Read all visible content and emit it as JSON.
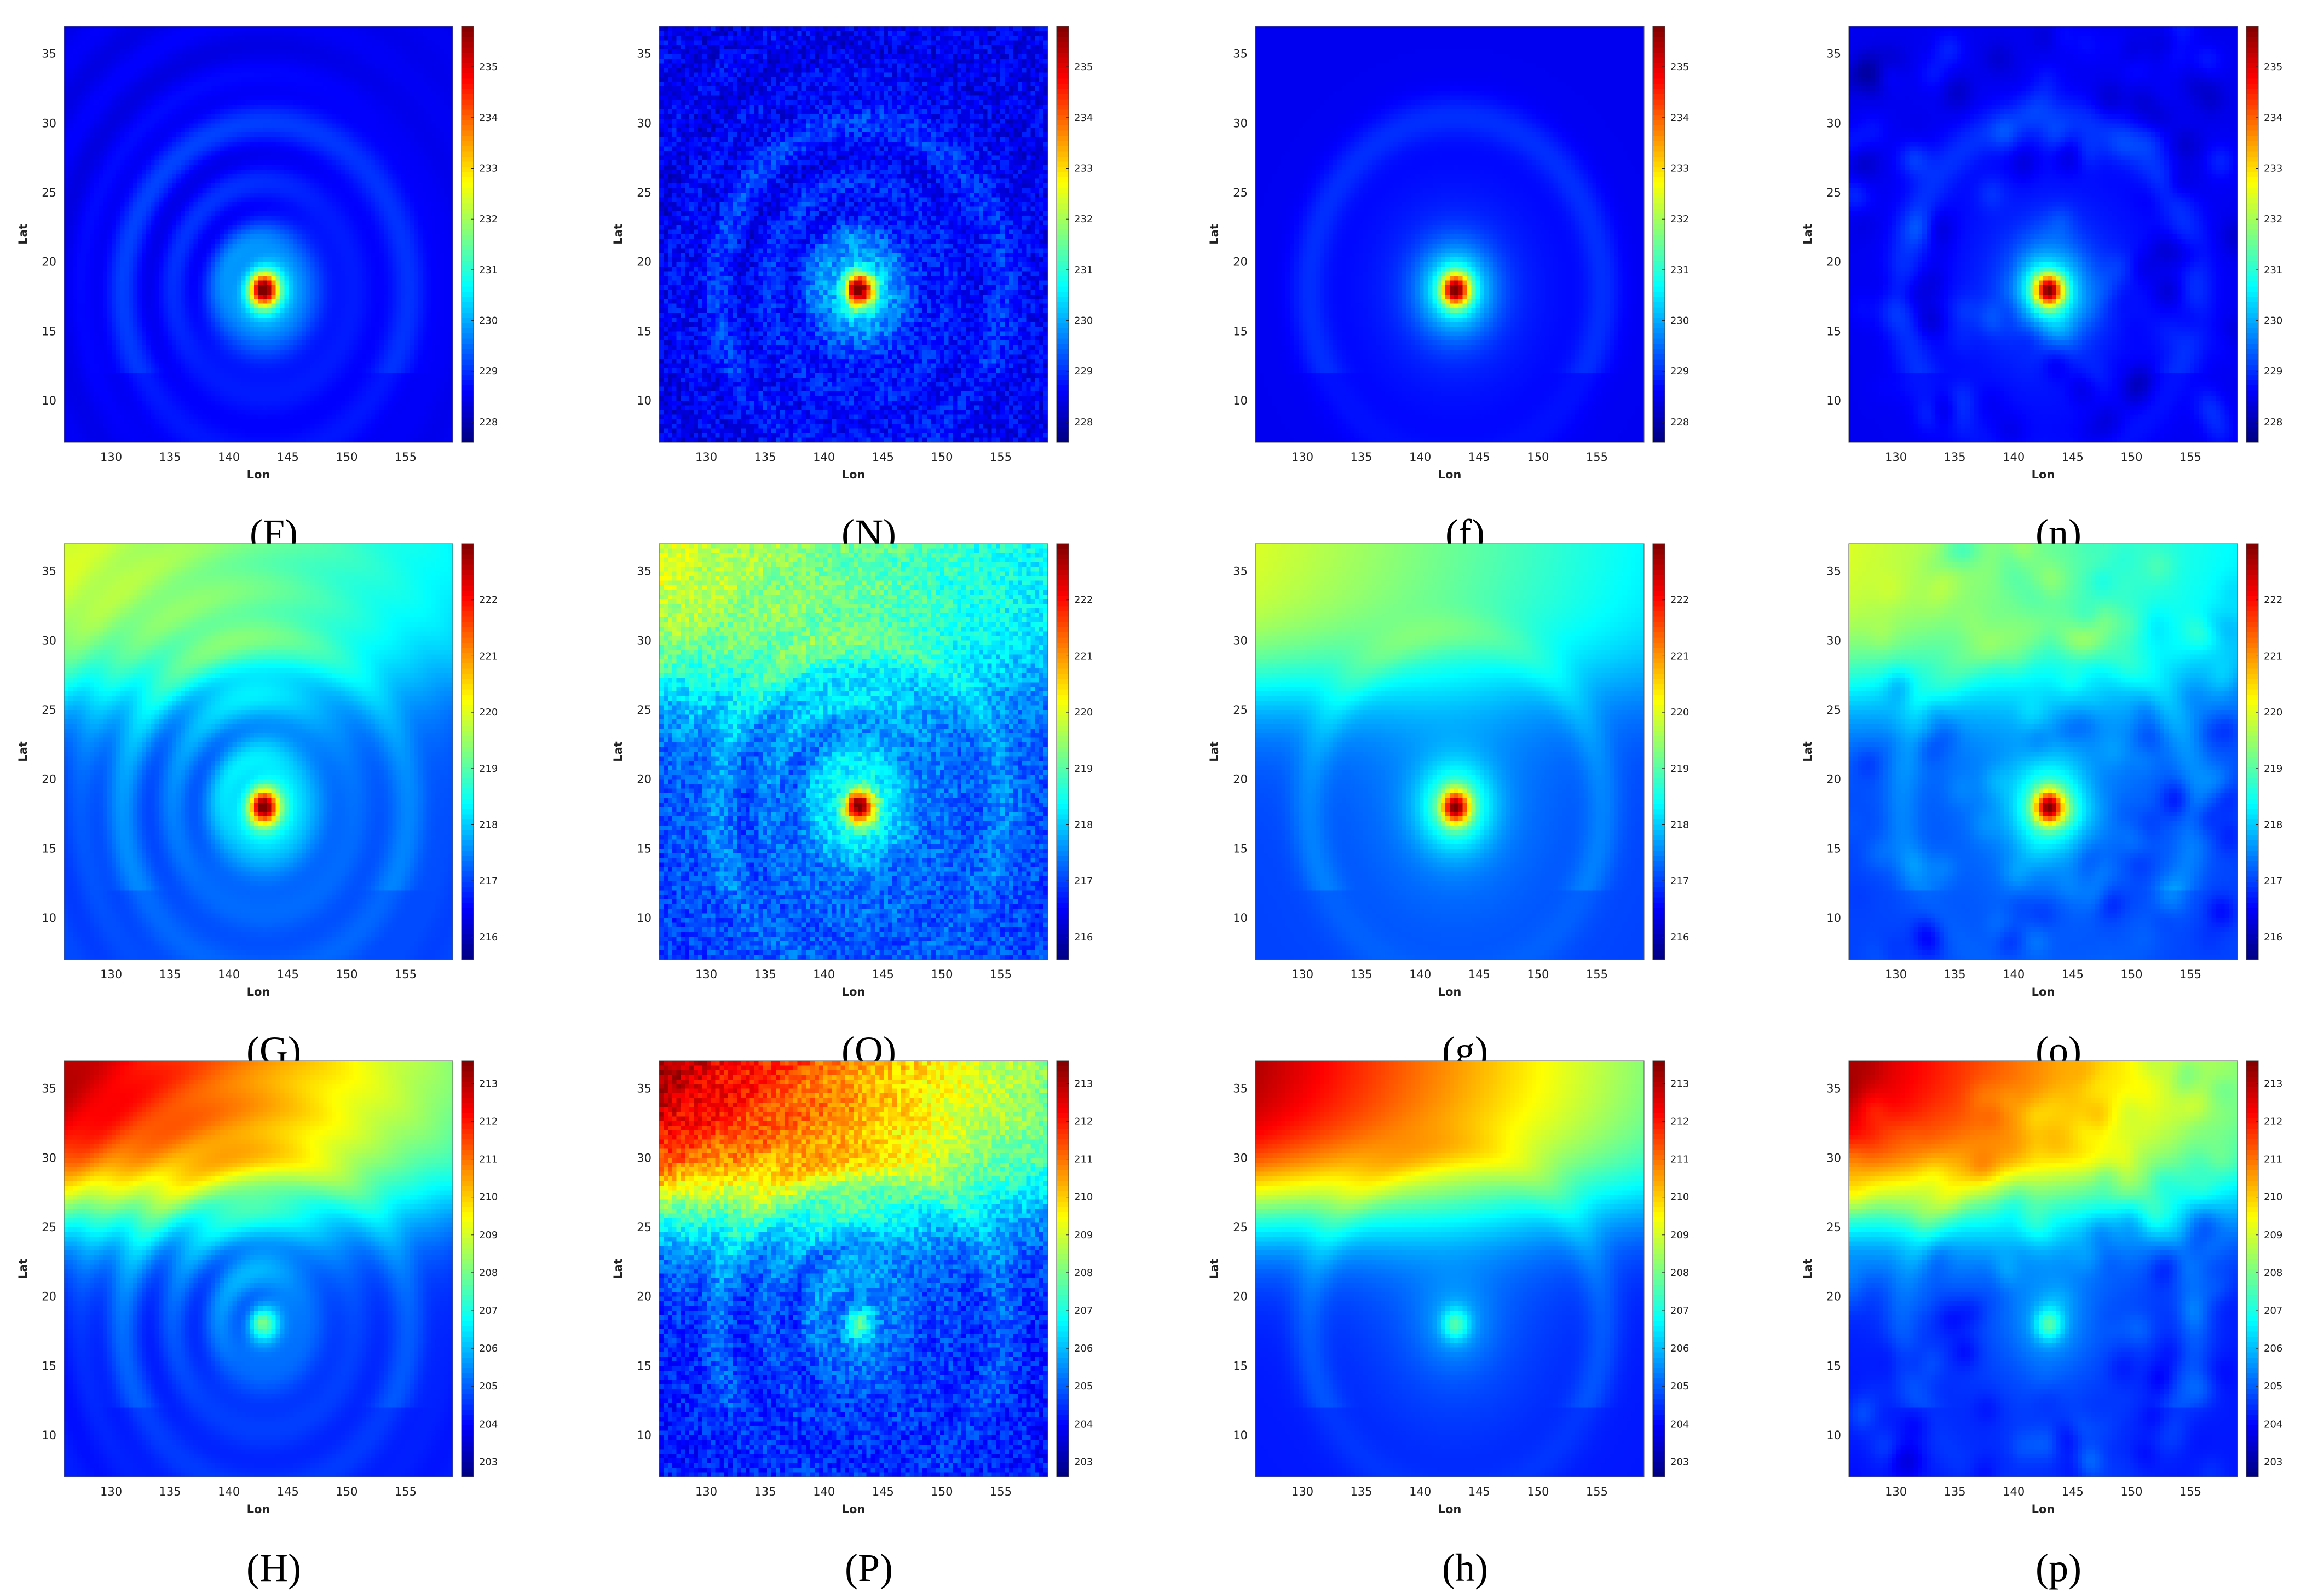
{
  "figure": {
    "chart_data": [
      {
        "type": "heatmap",
        "label": "(F)",
        "noise": "none",
        "rings": true,
        "xlabel": "Lon",
        "ylabel": "Lat",
        "xticks": [
          130,
          135,
          140,
          145,
          150,
          155
        ],
        "yticks": [
          10,
          15,
          20,
          25,
          30,
          35
        ],
        "xlim": [
          126,
          159
        ],
        "ylim": [
          7,
          37
        ],
        "colorbar": {
          "min": 227.6,
          "max": 235.8,
          "ticks": [
            228,
            229,
            230,
            231,
            232,
            233,
            234,
            235
          ]
        },
        "center": {
          "lon": 143,
          "lat": 18
        },
        "background": 228.5,
        "peak": 235.5
      },
      {
        "type": "heatmap",
        "label": "(N)",
        "noise": "pixel",
        "rings": true,
        "xlabel": "Lon",
        "ylabel": "Lat",
        "xticks": [
          130,
          135,
          140,
          145,
          150,
          155
        ],
        "yticks": [
          10,
          15,
          20,
          25,
          30,
          35
        ],
        "xlim": [
          126,
          159
        ],
        "ylim": [
          7,
          37
        ],
        "colorbar": {
          "min": 227.6,
          "max": 235.8,
          "ticks": [
            228,
            229,
            230,
            231,
            232,
            233,
            234,
            235
          ]
        },
        "center": {
          "lon": 143,
          "lat": 18
        },
        "background": 228.5,
        "peak": 235.5
      },
      {
        "type": "heatmap",
        "label": "(f)",
        "noise": "none",
        "rings": false,
        "xlabel": "Lon",
        "ylabel": "Lat",
        "xticks": [
          130,
          135,
          140,
          145,
          150,
          155
        ],
        "yticks": [
          10,
          15,
          20,
          25,
          30,
          35
        ],
        "xlim": [
          126,
          159
        ],
        "ylim": [
          7,
          37
        ],
        "colorbar": {
          "min": 227.6,
          "max": 235.8,
          "ticks": [
            228,
            229,
            230,
            231,
            232,
            233,
            234,
            235
          ]
        },
        "center": {
          "lon": 143,
          "lat": 18
        },
        "background": 228.5,
        "peak": 235.5
      },
      {
        "type": "heatmap",
        "label": "(n)",
        "noise": "blob",
        "rings": false,
        "xlabel": "Lon",
        "ylabel": "Lat",
        "xticks": [
          130,
          135,
          140,
          145,
          150,
          155
        ],
        "yticks": [
          10,
          15,
          20,
          25,
          30,
          35
        ],
        "xlim": [
          126,
          159
        ],
        "ylim": [
          7,
          37
        ],
        "colorbar": {
          "min": 227.6,
          "max": 235.8,
          "ticks": [
            228,
            229,
            230,
            231,
            232,
            233,
            234,
            235
          ]
        },
        "center": {
          "lon": 143,
          "lat": 18
        },
        "background": 228.5,
        "peak": 235.5
      },
      {
        "type": "heatmap",
        "label": "(G)",
        "noise": "none",
        "rings": true,
        "xlabel": "Lon",
        "ylabel": "Lat",
        "xticks": [
          130,
          135,
          140,
          145,
          150,
          155
        ],
        "yticks": [
          10,
          15,
          20,
          25,
          30,
          35
        ],
        "xlim": [
          126,
          159
        ],
        "ylim": [
          7,
          37
        ],
        "colorbar": {
          "min": 215.6,
          "max": 223.0,
          "ticks": [
            216,
            217,
            218,
            219,
            220,
            221,
            222
          ]
        },
        "center": {
          "lon": 143,
          "lat": 18
        },
        "background": 217.0,
        "peak": 222.6,
        "north_warm": 3.0
      },
      {
        "type": "heatmap",
        "label": "(O)",
        "noise": "pixel",
        "rings": true,
        "xlabel": "Lon",
        "ylabel": "Lat",
        "xticks": [
          130,
          135,
          140,
          145,
          150,
          155
        ],
        "yticks": [
          10,
          15,
          20,
          25,
          30,
          35
        ],
        "xlim": [
          126,
          159
        ],
        "ylim": [
          7,
          37
        ],
        "colorbar": {
          "min": 215.6,
          "max": 223.0,
          "ticks": [
            216,
            217,
            218,
            219,
            220,
            221,
            222
          ]
        },
        "center": {
          "lon": 143,
          "lat": 18
        },
        "background": 217.0,
        "peak": 222.6,
        "north_warm": 3.0
      },
      {
        "type": "heatmap",
        "label": "(g)",
        "noise": "none",
        "rings": false,
        "xlabel": "Lon",
        "ylabel": "Lat",
        "xticks": [
          130,
          135,
          140,
          145,
          150,
          155
        ],
        "yticks": [
          10,
          15,
          20,
          25,
          30,
          35
        ],
        "xlim": [
          126,
          159
        ],
        "ylim": [
          7,
          37
        ],
        "colorbar": {
          "min": 215.6,
          "max": 223.0,
          "ticks": [
            216,
            217,
            218,
            219,
            220,
            221,
            222
          ]
        },
        "center": {
          "lon": 143,
          "lat": 18
        },
        "background": 217.0,
        "peak": 222.6,
        "north_warm": 3.0
      },
      {
        "type": "heatmap",
        "label": "(o)",
        "noise": "blob",
        "rings": false,
        "xlabel": "Lon",
        "ylabel": "Lat",
        "xticks": [
          130,
          135,
          140,
          145,
          150,
          155
        ],
        "yticks": [
          10,
          15,
          20,
          25,
          30,
          35
        ],
        "xlim": [
          126,
          159
        ],
        "ylim": [
          7,
          37
        ],
        "colorbar": {
          "min": 215.6,
          "max": 223.0,
          "ticks": [
            216,
            217,
            218,
            219,
            220,
            221,
            222
          ]
        },
        "center": {
          "lon": 143,
          "lat": 18
        },
        "background": 217.0,
        "peak": 222.6,
        "north_warm": 3.0
      },
      {
        "type": "heatmap",
        "label": "(H)",
        "noise": "none",
        "rings": true,
        "xlabel": "Lon",
        "ylabel": "Lat",
        "xticks": [
          130,
          135,
          140,
          145,
          150,
          155
        ],
        "yticks": [
          10,
          15,
          20,
          25,
          30,
          35
        ],
        "xlim": [
          126,
          159
        ],
        "ylim": [
          7,
          37
        ],
        "colorbar": {
          "min": 202.6,
          "max": 213.6,
          "ticks": [
            203,
            204,
            205,
            206,
            207,
            208,
            209,
            210,
            211,
            212,
            213
          ]
        },
        "center": {
          "lon": 143,
          "lat": 18
        },
        "background": 204.2,
        "peak": 206.8,
        "north_warm": 9.0
      },
      {
        "type": "heatmap",
        "label": "(P)",
        "noise": "pixel",
        "rings": true,
        "xlabel": "Lon",
        "ylabel": "Lat",
        "xticks": [
          130,
          135,
          140,
          145,
          150,
          155
        ],
        "yticks": [
          10,
          15,
          20,
          25,
          30,
          35
        ],
        "xlim": [
          126,
          159
        ],
        "ylim": [
          7,
          37
        ],
        "colorbar": {
          "min": 202.6,
          "max": 213.6,
          "ticks": [
            203,
            204,
            205,
            206,
            207,
            208,
            209,
            210,
            211,
            212,
            213
          ]
        },
        "center": {
          "lon": 143,
          "lat": 18
        },
        "background": 204.2,
        "peak": 206.8,
        "north_warm": 9.0
      },
      {
        "type": "heatmap",
        "label": "(h)",
        "noise": "none",
        "rings": false,
        "xlabel": "Lon",
        "ylabel": "Lat",
        "xticks": [
          130,
          135,
          140,
          145,
          150,
          155
        ],
        "yticks": [
          10,
          15,
          20,
          25,
          30,
          35
        ],
        "xlim": [
          126,
          159
        ],
        "ylim": [
          7,
          37
        ],
        "colorbar": {
          "min": 202.6,
          "max": 213.6,
          "ticks": [
            203,
            204,
            205,
            206,
            207,
            208,
            209,
            210,
            211,
            212,
            213
          ]
        },
        "center": {
          "lon": 143,
          "lat": 18
        },
        "background": 204.2,
        "peak": 206.8,
        "north_warm": 9.0
      },
      {
        "type": "heatmap",
        "label": "(p)",
        "noise": "blob",
        "rings": false,
        "xlabel": "Lon",
        "ylabel": "Lat",
        "xticks": [
          130,
          135,
          140,
          145,
          150,
          155
        ],
        "yticks": [
          10,
          15,
          20,
          25,
          30,
          35
        ],
        "xlim": [
          126,
          159
        ],
        "ylim": [
          7,
          37
        ],
        "colorbar": {
          "min": 202.6,
          "max": 213.6,
          "ticks": [
            203,
            204,
            205,
            206,
            207,
            208,
            209,
            210,
            211,
            212,
            213
          ]
        },
        "center": {
          "lon": 143,
          "lat": 18
        },
        "background": 204.2,
        "peak": 206.8,
        "north_warm": 9.0
      }
    ]
  }
}
